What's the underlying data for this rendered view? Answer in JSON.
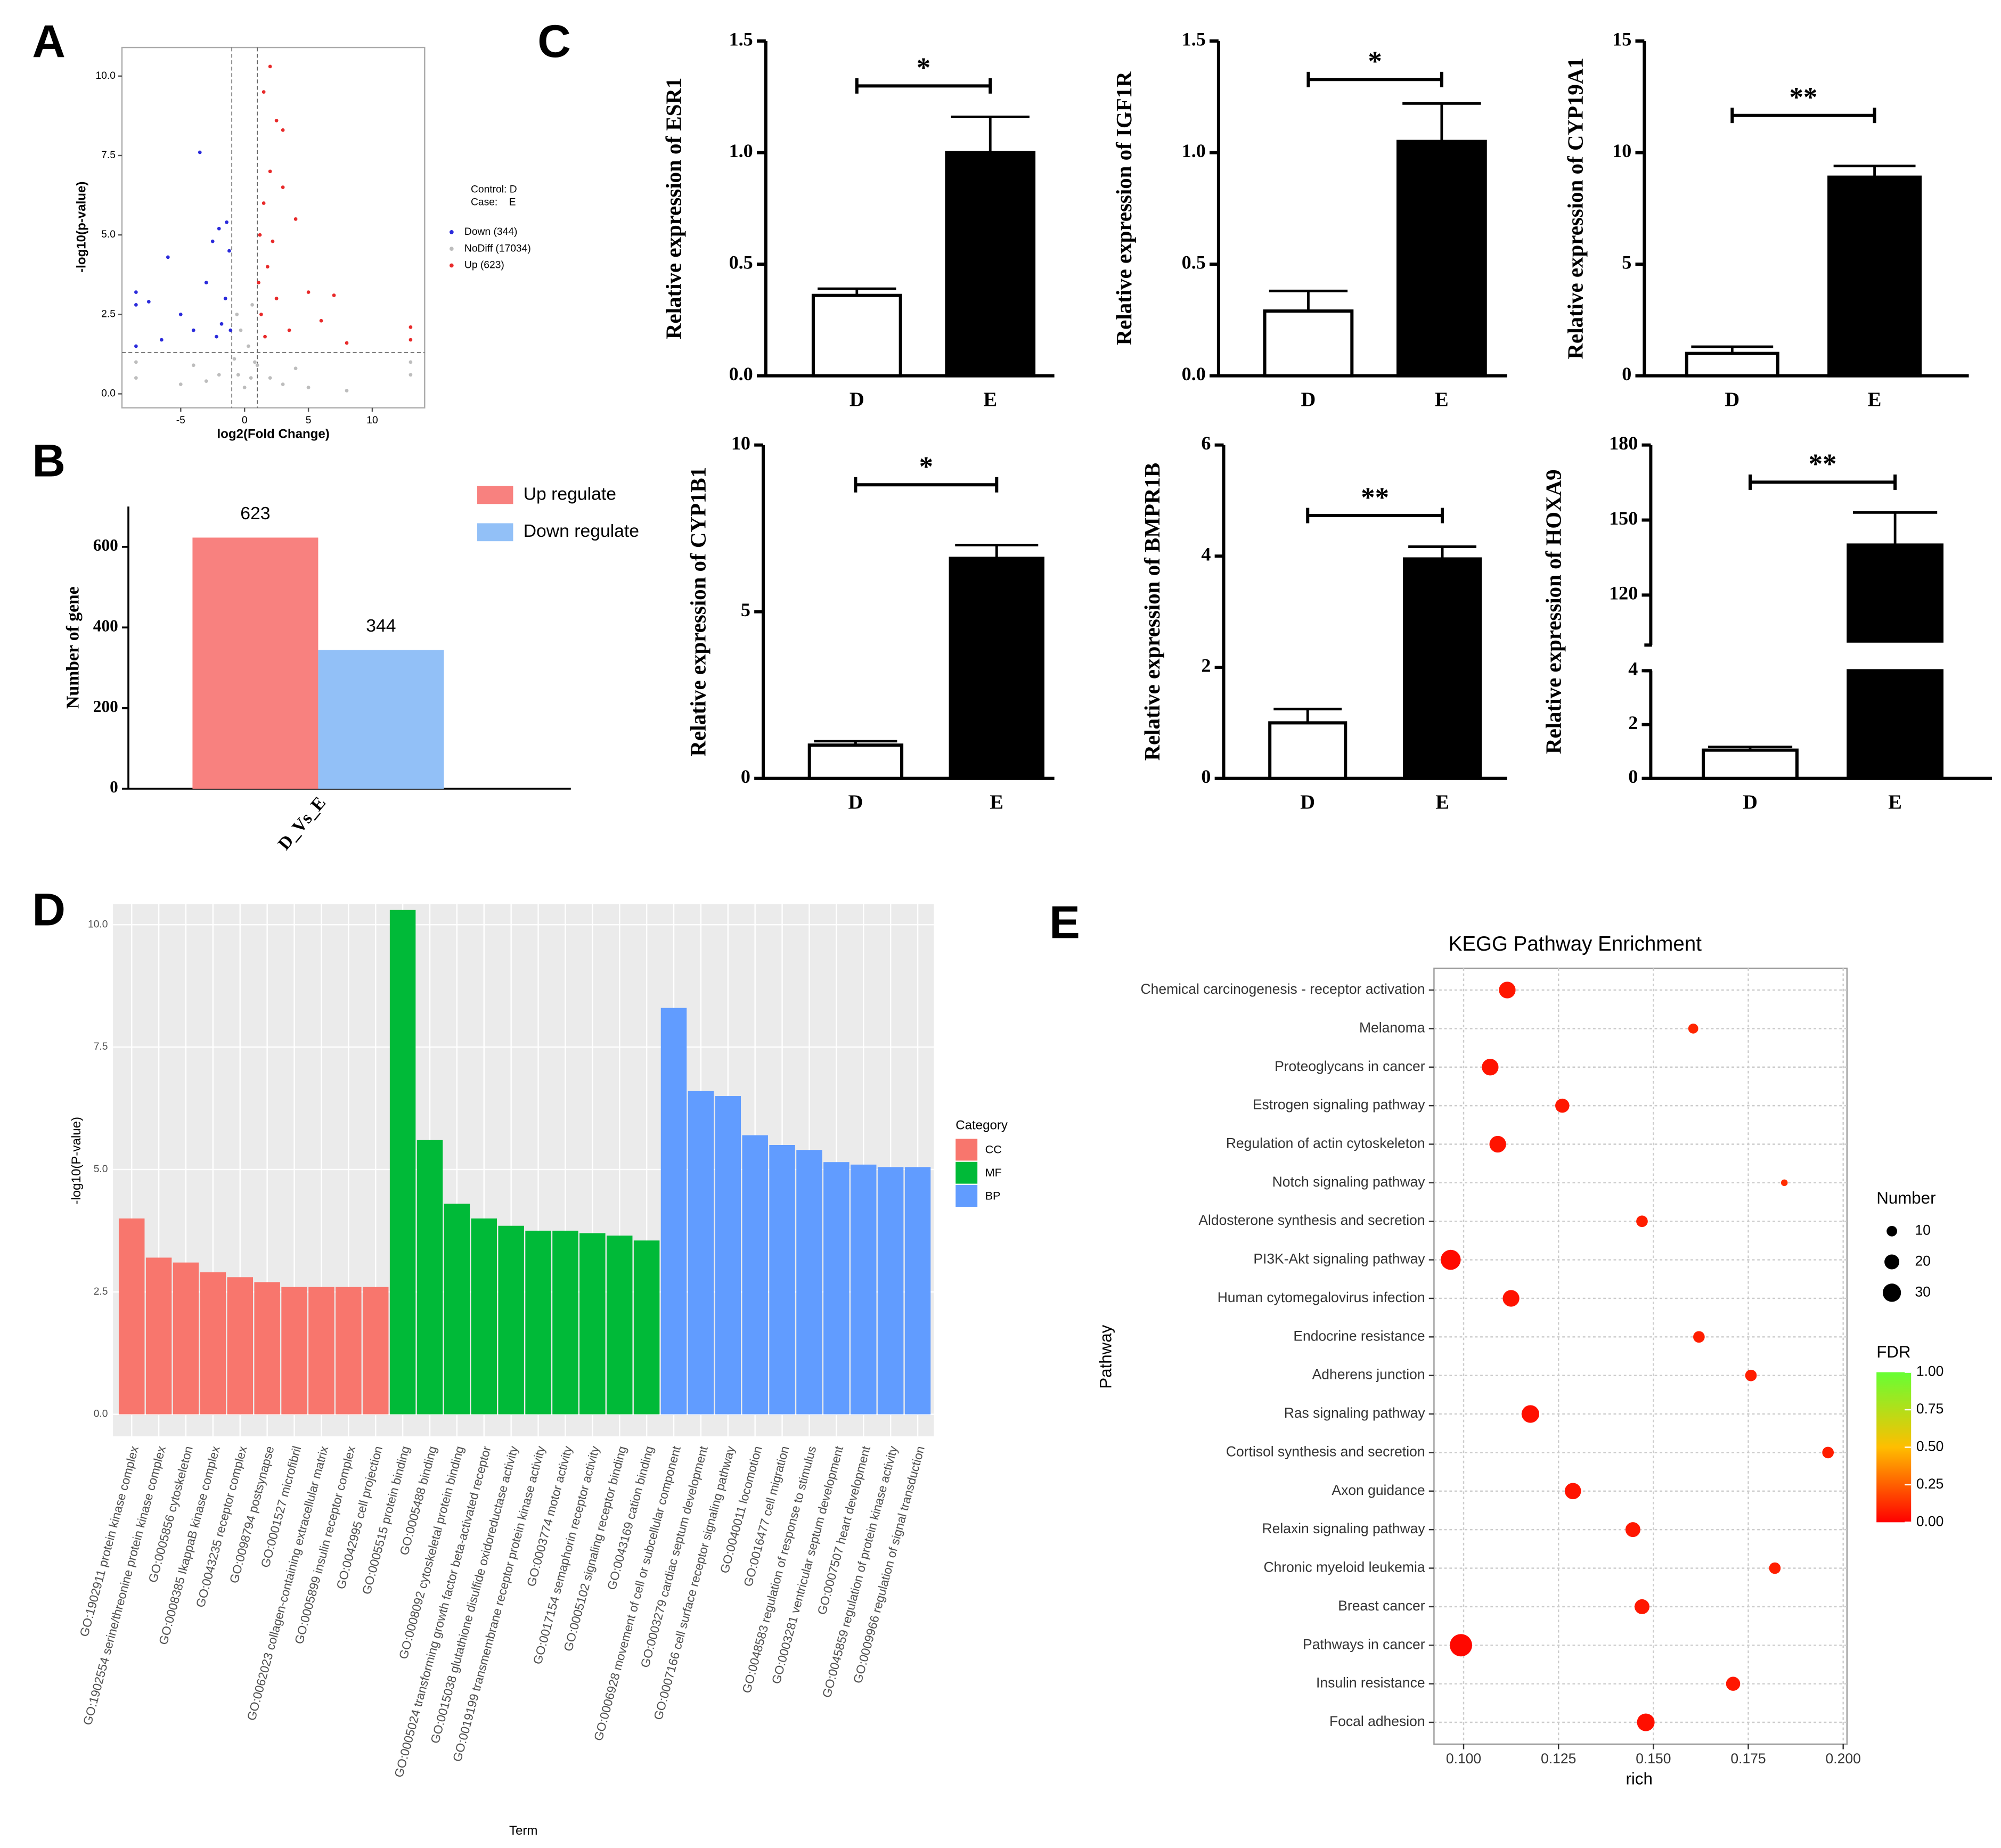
{
  "panel_labels": [
    "A",
    "B",
    "C",
    "D",
    "E"
  ],
  "chart_data": [
    {
      "type": "scatter",
      "xlabel": "log2(Fold Change)",
      "ylabel": "-log10(p-value)",
      "xlim": [
        -9.6,
        14.1
      ],
      "ylim": [
        -0.44,
        10.9
      ],
      "xticks": [
        -5,
        0,
        5,
        10
      ],
      "yticks": [
        {
          "value": 0,
          "label": "0.0"
        },
        {
          "value": 2.5,
          "label": "2.5"
        },
        {
          "value": 5,
          "label": "5.0"
        },
        {
          "value": 7.5,
          "label": "7.5"
        },
        {
          "value": 10,
          "label": "10.0"
        }
      ],
      "vlines": [
        -1,
        1
      ],
      "hline": 1.3,
      "legend_title": [
        "Control: D",
        "Case:    E"
      ],
      "series": [
        {
          "name": "Down (344)",
          "color": "#2a2adb",
          "x": [
            -8.5,
            -8.5,
            -8.5,
            -7.5,
            -6,
            -5,
            -3.5,
            -3,
            -2.5,
            -2,
            -1.5,
            -1.8,
            -1.2,
            -1.1,
            -2.2,
            -4,
            -6.5,
            -1.4
          ],
          "y": [
            3.2,
            2.8,
            1.5,
            2.9,
            4.3,
            2.5,
            7.6,
            3.5,
            4.8,
            5.2,
            3.0,
            2.2,
            4.5,
            2.0,
            1.8,
            2.0,
            1.7,
            5.4
          ]
        },
        {
          "name": "NoDiff (17034)",
          "color": "#bdbdbd",
          "x": [
            0,
            0.5,
            -0.5,
            0.8,
            -0.8,
            2,
            -2,
            3,
            -3,
            5,
            -5,
            8,
            -8.5,
            -8.5,
            13,
            13,
            0.3,
            -0.3,
            0.6,
            -0.6,
            1.0,
            4,
            -4
          ],
          "y": [
            0.2,
            0.5,
            0.6,
            1.0,
            1.1,
            0.5,
            0.6,
            0.3,
            0.4,
            0.2,
            0.3,
            0.1,
            0.5,
            1.0,
            0.6,
            1.0,
            1.5,
            2.0,
            2.8,
            2.5,
            0.9,
            0.8,
            0.9
          ]
        },
        {
          "name": "Up (623)",
          "color": "#e82a2a",
          "x": [
            1.5,
            2,
            2.5,
            3,
            2,
            1.5,
            1.2,
            1.8,
            3,
            4,
            2.5,
            1.3,
            5,
            6,
            7,
            13,
            13,
            1.6,
            3.5,
            8,
            2.2,
            1.1
          ],
          "y": [
            9.5,
            10.3,
            8.6,
            8.3,
            7,
            6,
            5,
            4,
            6.5,
            5.5,
            3,
            2.5,
            3.2,
            2.3,
            3.1,
            2.1,
            1.7,
            1.8,
            2.0,
            1.6,
            4.8,
            3.5
          ]
        }
      ]
    },
    {
      "type": "bar",
      "ylabel": "Number of gene",
      "categories": [
        "D_Vs_E"
      ],
      "ylim": [
        0,
        700
      ],
      "yticks": [
        0,
        200,
        400,
        600
      ],
      "series": [
        {
          "name": "Up regulate",
          "color": "#f8817f",
          "values": [
            623
          ]
        },
        {
          "name": "Down regulate",
          "color": "#92c0f7",
          "values": [
            344
          ]
        }
      ]
    },
    {
      "type": "bar",
      "ylabel": "Relative expression of ESR1",
      "categories": [
        "D",
        "E"
      ],
      "colors": [
        "#ffffff",
        "#000000"
      ],
      "values": [
        0.36,
        1.0
      ],
      "errors": [
        0.03,
        0.16
      ],
      "significance": "*",
      "ylim": [
        0,
        1.5
      ],
      "yticks": [
        {
          "value": 0,
          "label": "0.0"
        },
        {
          "value": 0.5,
          "label": "0.5"
        },
        {
          "value": 1,
          "label": "1.0"
        },
        {
          "value": 1.5,
          "label": "1.5"
        }
      ]
    },
    {
      "type": "bar",
      "ylabel": "Relative expression of IGF1R",
      "categories": [
        "D",
        "E"
      ],
      "colors": [
        "#ffffff",
        "#000000"
      ],
      "values": [
        0.29,
        1.05
      ],
      "errors": [
        0.09,
        0.17
      ],
      "significance": "*",
      "ylim": [
        0,
        1.5
      ],
      "yticks": [
        {
          "value": 0,
          "label": "0.0"
        },
        {
          "value": 0.5,
          "label": "0.5"
        },
        {
          "value": 1,
          "label": "1.0"
        },
        {
          "value": 1.5,
          "label": "1.5"
        }
      ]
    },
    {
      "type": "bar",
      "ylabel": "Relative expression of CYP19A1",
      "categories": [
        "D",
        "E"
      ],
      "colors": [
        "#ffffff",
        "#000000"
      ],
      "values": [
        1.0,
        8.9
      ],
      "errors": [
        0.3,
        0.5
      ],
      "significance": "**",
      "ylim": [
        0,
        15
      ],
      "yticks": [
        0,
        5,
        10,
        15
      ]
    },
    {
      "type": "bar",
      "ylabel": "Relative expression of CYP1B1",
      "categories": [
        "D",
        "E"
      ],
      "colors": [
        "#ffffff",
        "#000000"
      ],
      "values": [
        1.0,
        6.6
      ],
      "errors": [
        0.12,
        0.4
      ],
      "significance": "*",
      "ylim": [
        0,
        10
      ],
      "yticks": [
        0,
        5,
        10
      ]
    },
    {
      "type": "bar",
      "ylabel": "Relative expression of BMPR1B",
      "categories": [
        "D",
        "E"
      ],
      "colors": [
        "#ffffff",
        "#000000"
      ],
      "values": [
        1.0,
        3.95
      ],
      "errors": [
        0.25,
        0.22
      ],
      "significance": "**",
      "ylim": [
        0,
        6
      ],
      "yticks": [
        0,
        2,
        4,
        6
      ]
    },
    {
      "type": "bar",
      "ylabel": "Relative expression of HOXA9",
      "categories": [
        "D",
        "E"
      ],
      "colors": [
        "#ffffff",
        "#000000"
      ],
      "values": [
        1.05,
        140
      ],
      "errors": [
        0.12,
        13
      ],
      "significance": "**",
      "ylim": [
        0,
        180
      ],
      "axis_break": [
        4,
        100
      ],
      "yticks": [
        0,
        2,
        4,
        120,
        150,
        180
      ]
    },
    {
      "type": "bar",
      "xlabel": "Term",
      "ylabel": "-log10(P-value)",
      "legend_title": "Category",
      "ylim": [
        -0.45,
        10.42
      ],
      "yticks": [
        {
          "value": 0,
          "label": "0.0"
        },
        {
          "value": 2.5,
          "label": "2.5"
        },
        {
          "value": 5,
          "label": "5.0"
        },
        {
          "value": 7.5,
          "label": "7.5"
        },
        {
          "value": 10,
          "label": "10.0"
        }
      ],
      "categories": [
        "GO:1902911 protein kinase complex",
        "GO:1902554 serine/threonine protein kinase complex",
        "GO:0005856 cytoskeleton",
        "GO:0008385 IkappaB kinase complex",
        "GO:0043235 receptor complex",
        "GO:0098794 postsynapse",
        "GO:0001527 microfibril",
        "GO:0062023 collagen-containing extracellular matrix",
        "GO:0005899 insulin receptor complex",
        "GO:0042995 cell projection",
        "GO:0005515 protein binding",
        "GO:0005488 binding",
        "GO:0008092 cytoskeletal protein binding",
        "GO:0005024 transforming growth factor beta-activated receptor",
        "GO:0015038 glutathione disulfide oxidoreductase activity",
        "GO:0019199 transmembrane receptor protein kinase activity",
        "GO:0003774 motor activity",
        "GO:0017154 semaphorin receptor activity",
        "GO:0005102 signaling receptor binding",
        "GO:0043169 cation binding",
        "GO:0006928 movement of cell or subcellular component",
        "GO:0003279 cardiac septum development",
        "GO:0007166 cell surface receptor signaling pathway",
        "GO:0040011 locomotion",
        "GO:0016477 cell migration",
        "GO:0048583 regulation of response to stimulus",
        "GO:0003281 ventricular septum development",
        "GO:0007507 heart development",
        "GO:0045859 regulation of protein kinase activity",
        "GO:0009966 regulation of signal transduction"
      ],
      "series": [
        {
          "name": "CC",
          "color": "#f8766d",
          "values": [
            4.0,
            3.2,
            3.1,
            2.9,
            2.8,
            2.7,
            2.6,
            2.6,
            2.6,
            2.6,
            null,
            null,
            null,
            null,
            null,
            null,
            null,
            null,
            null,
            null,
            null,
            null,
            null,
            null,
            null,
            null,
            null,
            null,
            null,
            null
          ]
        },
        {
          "name": "MF",
          "color": "#00ba38",
          "values": [
            null,
            null,
            null,
            null,
            null,
            null,
            null,
            null,
            null,
            null,
            10.3,
            5.6,
            4.3,
            4.0,
            3.85,
            3.75,
            3.75,
            3.7,
            3.65,
            3.55,
            null,
            null,
            null,
            null,
            null,
            null,
            null,
            null,
            null,
            null
          ]
        },
        {
          "name": "BP",
          "color": "#619cff",
          "values": [
            null,
            null,
            null,
            null,
            null,
            null,
            null,
            null,
            null,
            null,
            null,
            null,
            null,
            null,
            null,
            null,
            null,
            null,
            null,
            null,
            8.3,
            6.6,
            6.5,
            5.7,
            5.5,
            5.4,
            5.15,
            5.1,
            5.05,
            5.05
          ]
        }
      ]
    },
    {
      "type": "scatter",
      "title": "KEGG Pathway Enrichment",
      "xlabel": "rich",
      "ylabel": "Pathway",
      "size_title": "Number",
      "color_title": "FDR",
      "xlim": [
        0.0922,
        0.201
      ],
      "xticks": [
        {
          "value": 0.1,
          "label": "0.100"
        },
        {
          "value": 0.125,
          "label": "0.125"
        },
        {
          "value": 0.15,
          "label": "0.150"
        },
        {
          "value": 0.175,
          "label": "0.175"
        },
        {
          "value": 0.2,
          "label": "0.200"
        }
      ],
      "size_ticks": [
        10,
        20,
        30
      ],
      "color_ticks": [
        {
          "value": 0,
          "label": "0.00"
        },
        {
          "value": 0.25,
          "label": "0.25"
        },
        {
          "value": 0.5,
          "label": "0.50"
        },
        {
          "value": 0.75,
          "label": "0.75"
        },
        {
          "value": 1,
          "label": "1.00"
        }
      ],
      "categories": [
        "Chemical carcinogenesis - receptor activation",
        "Melanoma",
        "Proteoglycans in cancer",
        "Estrogen signaling pathway",
        "Regulation of actin cytoskeleton",
        "Notch signaling pathway",
        "Aldosterone synthesis and secretion",
        "PI3K-Akt signaling pathway",
        "Human cytomegalovirus infection",
        "Endocrine resistance",
        "Adherens junction",
        "Ras signaling pathway",
        "Cortisol synthesis and secretion",
        "Axon guidance",
        "Relaxin signaling pathway",
        "Chronic myeloid leukemia",
        "Breast cancer",
        "Pathways in cancer",
        "Insulin resistance",
        "Focal adhesion"
      ],
      "x": [
        0.1115,
        0.1605,
        0.107,
        0.126,
        0.109,
        0.1845,
        0.147,
        0.0966,
        0.1125,
        0.162,
        0.1757,
        0.1176,
        0.196,
        0.1288,
        0.1446,
        0.182,
        0.147,
        0.0993,
        0.171,
        0.148
      ],
      "sizes": [
        25,
        9,
        25,
        18,
        25,
        4,
        12,
        36,
        25,
        12,
        12,
        28,
        12,
        24,
        20,
        12,
        20,
        45,
        18,
        28
      ],
      "fdr": [
        0.06,
        0.1,
        0.05,
        0.06,
        0.05,
        0.12,
        0.08,
        0.03,
        0.05,
        0.08,
        0.08,
        0.04,
        0.08,
        0.05,
        0.06,
        0.08,
        0.06,
        0.02,
        0.06,
        0.04
      ]
    }
  ]
}
